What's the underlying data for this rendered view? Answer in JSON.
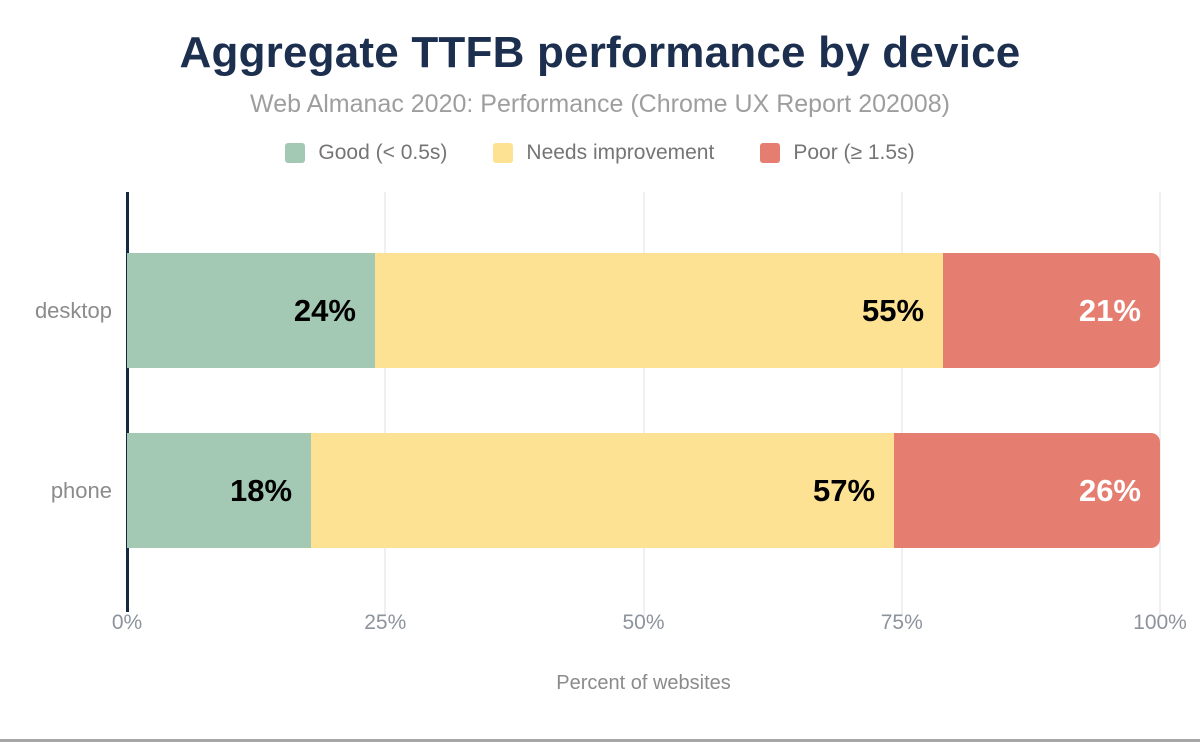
{
  "chart_data": {
    "type": "bar",
    "orientation": "horizontal",
    "stacked": true,
    "title": "Aggregate TTFB performance by device",
    "subtitle": "Web Almanac 2020: Performance (Chrome UX Report 202008)",
    "categories": [
      "desktop",
      "phone"
    ],
    "series": [
      {
        "name": "Good (< 0.5s)",
        "color": "#a3c8b4",
        "label_color": "#000000",
        "values": [
          24,
          18
        ]
      },
      {
        "name": "Needs improvement",
        "color": "#fde293",
        "label_color": "#000000",
        "values": [
          55,
          57
        ]
      },
      {
        "name": "Poor (≥ 1.5s)",
        "color": "#e57e71",
        "label_color": "#ffffff",
        "values": [
          21,
          26
        ]
      }
    ],
    "value_suffix": "%",
    "xlabel": "Percent of websites",
    "ylabel": "",
    "x_ticks": [
      "0%",
      "25%",
      "50%",
      "75%",
      "100%"
    ],
    "xlim": [
      0,
      100
    ],
    "grid": "vertical",
    "legend_position": "top"
  },
  "colors": {
    "title": "#1c2f4f",
    "subtitle": "#9e9e9e",
    "legend_text": "#757575",
    "axis_line": "#152944",
    "gridline": "#f0f0f2",
    "tick_label": "#8d939d",
    "category_label": "#8b8b8b",
    "bottom_rule": "#a6a6a6"
  }
}
